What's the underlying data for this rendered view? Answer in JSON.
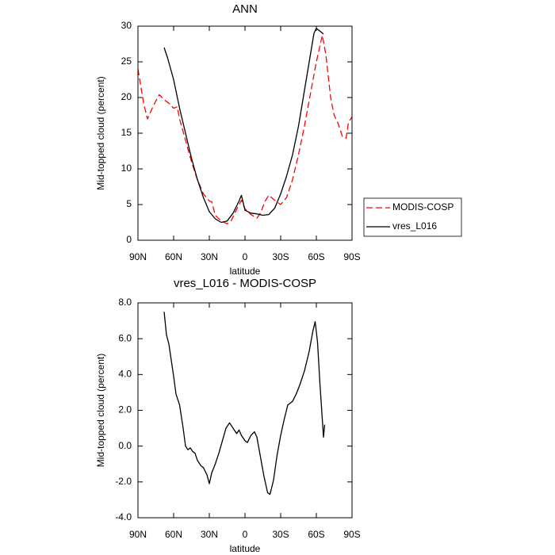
{
  "chart_data": [
    {
      "type": "line",
      "title": "ANN",
      "x_label": "latitude",
      "y_label": "Mid-topped cloud (percent)",
      "xlim": [
        90,
        -90
      ],
      "xticks": [
        {
          "value": 90,
          "label": "90N"
        },
        {
          "value": 60,
          "label": "60N"
        },
        {
          "value": 30,
          "label": "30N"
        },
        0,
        {
          "value": -30,
          "label": "30S"
        },
        {
          "value": -60,
          "label": "60S"
        },
        {
          "value": -90,
          "label": "90S"
        }
      ],
      "ylim": [
        0,
        30
      ],
      "yticks": [
        0,
        5,
        10,
        15,
        20,
        25,
        30
      ],
      "legend": "right",
      "series": [
        {
          "name": "MODIS-COSP",
          "color": "#ff0000",
          "dashed": true,
          "x": [
            90,
            85,
            82,
            78,
            75,
            72,
            68,
            64,
            60,
            57,
            55,
            50,
            45,
            40,
            35,
            30,
            28,
            25,
            20,
            15,
            12,
            8,
            5,
            3,
            0,
            -5,
            -10,
            -13,
            -17,
            -20,
            -25,
            -30,
            -35,
            -40,
            -45,
            -50,
            -55,
            -60,
            -65,
            -68,
            -72,
            -75,
            -78,
            -82,
            -85,
            -87,
            -90
          ],
          "values": [
            24,
            19,
            17,
            18.5,
            19.5,
            20.4,
            19.7,
            19.2,
            18.5,
            18.7,
            17,
            14,
            11,
            8.5,
            6.5,
            5.5,
            5.4,
            3.5,
            2.7,
            2.3,
            2.6,
            4,
            5,
            5.6,
            4.4,
            3.6,
            3.1,
            3.8,
            5.5,
            6.3,
            5.6,
            5,
            6,
            8.5,
            12,
            16,
            20.5,
            25,
            28.7,
            26,
            20,
            17.5,
            16.5,
            14.5,
            14.3,
            16.5,
            17.3
          ]
        },
        {
          "name": "vres_L016",
          "color": "#000000",
          "dashed": false,
          "x": [
            68,
            65,
            60,
            55,
            50,
            45,
            40,
            35,
            30,
            25,
            20,
            15,
            10,
            5,
            3,
            0,
            -5,
            -10,
            -15,
            -20,
            -25,
            -30,
            -35,
            -40,
            -45,
            -50,
            -55,
            -58,
            -60,
            -63,
            -66
          ],
          "values": [
            27,
            25.5,
            22.5,
            18.5,
            15,
            11.5,
            8.5,
            6,
            4,
            3,
            2.5,
            2.7,
            3.8,
            5.5,
            6.3,
            4.2,
            3.8,
            3.7,
            3.5,
            3.6,
            4.5,
            6.5,
            9,
            12,
            16,
            21,
            26,
            29,
            29.7,
            29.3,
            28.9
          ]
        }
      ]
    },
    {
      "type": "line",
      "title": "vres_L016 - MODIS-COSP",
      "x_label": "latitude",
      "y_label": "Mid-topped cloud (percent)",
      "xlim": [
        90,
        -90
      ],
      "xticks": [
        {
          "value": 90,
          "label": "90N"
        },
        {
          "value": 60,
          "label": "60N"
        },
        {
          "value": 30,
          "label": "30N"
        },
        0,
        {
          "value": -30,
          "label": "30S"
        },
        {
          "value": -60,
          "label": "60S"
        },
        {
          "value": -90,
          "label": "90S"
        }
      ],
      "ylim": [
        -4,
        8
      ],
      "yticks": [
        {
          "value": -4,
          "label": "-4.0"
        },
        {
          "value": -2,
          "label": "-2.0"
        },
        {
          "value": 0,
          "label": "0.0"
        },
        {
          "value": 2,
          "label": "2.0"
        },
        {
          "value": 4,
          "label": "4.0"
        },
        {
          "value": 6,
          "label": "6.0"
        },
        {
          "value": 8,
          "label": "8.0"
        }
      ],
      "series": [
        {
          "color": "#000000",
          "dashed": false,
          "x": [
            68,
            66,
            64,
            62,
            60,
            58,
            55,
            52,
            50,
            48,
            46,
            44,
            42,
            40,
            37,
            35,
            32,
            30,
            28,
            25,
            22,
            19,
            16,
            13,
            10,
            7,
            5,
            3,
            0,
            -2,
            -5,
            -8,
            -10,
            -13,
            -16,
            -19,
            -21,
            -24,
            -27,
            -30,
            -33,
            -36,
            -40,
            -43,
            -46,
            -50,
            -54,
            -57,
            -59,
            -61,
            -63,
            -65,
            -66,
            -67
          ],
          "values": [
            7.5,
            6.2,
            5.7,
            4.8,
            3.9,
            2.9,
            2.3,
            1.0,
            0.0,
            -0.2,
            -0.1,
            -0.3,
            -0.4,
            -0.8,
            -1.1,
            -1.2,
            -1.6,
            -2.1,
            -1.5,
            -1.0,
            -0.4,
            0.3,
            1.0,
            1.3,
            1.0,
            0.7,
            0.9,
            0.6,
            0.3,
            0.2,
            0.6,
            0.8,
            0.5,
            -0.6,
            -1.7,
            -2.6,
            -2.7,
            -1.9,
            -0.5,
            0.6,
            1.5,
            2.3,
            2.5,
            2.9,
            3.4,
            4.2,
            5.3,
            6.4,
            6.95,
            5.8,
            3.5,
            1.5,
            0.5,
            1.2
          ]
        }
      ]
    }
  ]
}
